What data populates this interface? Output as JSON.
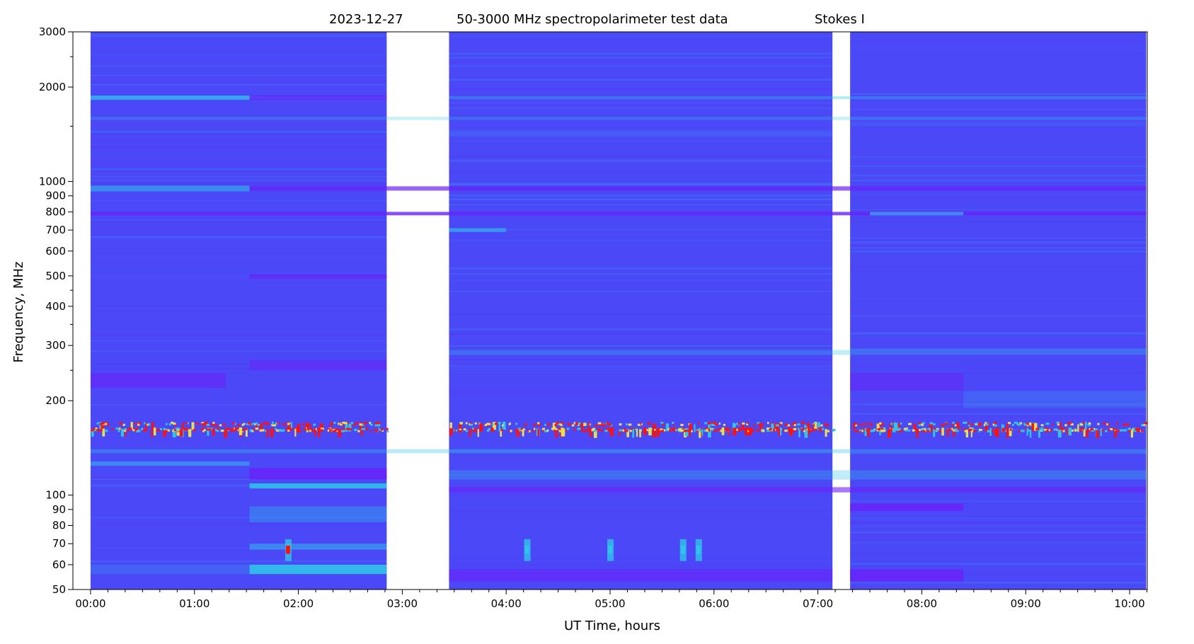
{
  "chart_data": {
    "type": "heatmap",
    "title_parts": [
      "2023-12-27",
      "50-3000 MHz spectropolarimeter test data",
      "Stokes I"
    ],
    "xlabel": "UT Time, hours",
    "ylabel": "Frequency, MHz",
    "xlim_hours": [
      -0.17,
      10.17
    ],
    "ylim_mhz": [
      50,
      3000
    ],
    "yscale": "log",
    "x_ticks": [
      {
        "h": 0,
        "label": "00:00"
      },
      {
        "h": 1,
        "label": "01:00"
      },
      {
        "h": 2,
        "label": "02:00"
      },
      {
        "h": 3,
        "label": "03:00"
      },
      {
        "h": 4,
        "label": "04:00"
      },
      {
        "h": 5,
        "label": "05:00"
      },
      {
        "h": 6,
        "label": "06:00"
      },
      {
        "h": 7,
        "label": "07:00"
      },
      {
        "h": 8,
        "label": "08:00"
      },
      {
        "h": 9,
        "label": "09:00"
      },
      {
        "h": 10,
        "label": "10:00"
      }
    ],
    "x_minor_step_minutes": 10,
    "y_ticks": [
      {
        "f": 50,
        "label": "50"
      },
      {
        "f": 60,
        "label": "60"
      },
      {
        "f": 70,
        "label": "70"
      },
      {
        "f": 80,
        "label": "80"
      },
      {
        "f": 90,
        "label": "90"
      },
      {
        "f": 100,
        "label": "100"
      },
      {
        "f": 200,
        "label": "200"
      },
      {
        "f": 300,
        "label": "300"
      },
      {
        "f": 400,
        "label": "400"
      },
      {
        "f": 500,
        "label": "500"
      },
      {
        "f": 600,
        "label": "600"
      },
      {
        "f": 700,
        "label": "700"
      },
      {
        "f": 800,
        "label": "800"
      },
      {
        "f": 900,
        "label": "900"
      },
      {
        "f": 1000,
        "label": "1000"
      },
      {
        "f": 2000,
        "label": "2000"
      },
      {
        "f": 3000,
        "label": "3000"
      }
    ],
    "y_minor_ticks": [
      250,
      350,
      450,
      1500,
      2500
    ],
    "colormap": {
      "low": "#6a22f8",
      "base": "#4b48f8",
      "mid": "#2ec5e8",
      "high_mid": "#e8e050",
      "high": "#ff1010"
    },
    "data_segments_hours": [
      [
        0.0,
        2.85
      ],
      [
        3.45,
        7.14
      ],
      [
        7.31,
        10.16
      ]
    ],
    "bands": [
      {
        "t": [
          0.0,
          1.53
        ],
        "f": [
          1820,
          1880
        ],
        "color": "#2ec5e8",
        "opacity": 0.7
      },
      {
        "t": [
          1.53,
          2.85
        ],
        "f": [
          1820,
          1880
        ],
        "color": "#6a22f8",
        "opacity": 0.6
      },
      {
        "t": [
          3.45,
          10.16
        ],
        "f": [
          1830,
          1870
        ],
        "color": "#2ec5e8",
        "opacity": 0.35
      },
      {
        "t": [
          0.0,
          10.16
        ],
        "f": [
          1570,
          1610
        ],
        "color": "#2ec5e8",
        "opacity": 0.25
      },
      {
        "t": [
          0.0,
          1.53
        ],
        "f": [
          930,
          970
        ],
        "color": "#2ec5e8",
        "opacity": 0.55
      },
      {
        "t": [
          1.53,
          10.16
        ],
        "f": [
          935,
          965
        ],
        "color": "#6a22f8",
        "opacity": 0.7
      },
      {
        "t": [
          0.0,
          10.16
        ],
        "f": [
          780,
          800
        ],
        "color": "#6a22f8",
        "opacity": 0.8
      },
      {
        "t": [
          7.5,
          8.4
        ],
        "f": [
          780,
          800
        ],
        "color": "#2ec5e8",
        "opacity": 0.6
      },
      {
        "t": [
          3.45,
          4.0
        ],
        "f": [
          690,
          710
        ],
        "color": "#2ec5e8",
        "opacity": 0.6
      },
      {
        "t": [
          1.53,
          2.85
        ],
        "f": [
          490,
          505
        ],
        "color": "#6a22f8",
        "opacity": 0.7
      },
      {
        "t": [
          3.45,
          10.16
        ],
        "f": [
          280,
          290
        ],
        "color": "#2ec5e8",
        "opacity": 0.3
      },
      {
        "t": [
          0.0,
          1.3
        ],
        "f": [
          220,
          245
        ],
        "color": "#6a22f8",
        "opacity": 0.6
      },
      {
        "t": [
          1.53,
          2.85
        ],
        "f": [
          250,
          270
        ],
        "color": "#6a22f8",
        "opacity": 0.5
      },
      {
        "t": [
          7.31,
          8.4
        ],
        "f": [
          215,
          245
        ],
        "color": "#6a22f8",
        "opacity": 0.5
      },
      {
        "t": [
          8.4,
          10.16
        ],
        "f": [
          190,
          215
        ],
        "color": "#2ec5e8",
        "opacity": 0.2
      },
      {
        "t": [
          0.0,
          10.16
        ],
        "f": [
          136,
          140
        ],
        "color": "#2ec5e8",
        "opacity": 0.35
      },
      {
        "t": [
          0.0,
          1.53
        ],
        "f": [
          124,
          128
        ],
        "color": "#2ec5e8",
        "opacity": 0.5
      },
      {
        "t": [
          1.53,
          2.85
        ],
        "f": [
          112,
          122
        ],
        "color": "#6a22f8",
        "opacity": 0.8
      },
      {
        "t": [
          1.53,
          2.85
        ],
        "f": [
          105,
          109
        ],
        "color": "#2ec5e8",
        "opacity": 0.85
      },
      {
        "t": [
          3.45,
          10.16
        ],
        "f": [
          112,
          120
        ],
        "color": "#2ec5e8",
        "opacity": 0.3
      },
      {
        "t": [
          3.45,
          10.16
        ],
        "f": [
          102,
          106
        ],
        "color": "#6a22f8",
        "opacity": 0.6
      },
      {
        "t": [
          7.31,
          8.4
        ],
        "f": [
          89,
          94
        ],
        "color": "#6a22f8",
        "opacity": 0.8
      },
      {
        "t": [
          1.53,
          2.85
        ],
        "f": [
          82,
          92
        ],
        "color": "#2ec5e8",
        "opacity": 0.35
      },
      {
        "t": [
          1.53,
          2.85
        ],
        "f": [
          67,
          70
        ],
        "color": "#2ec5e8",
        "opacity": 0.5
      },
      {
        "t": [
          1.53,
          2.85
        ],
        "f": [
          56,
          60
        ],
        "color": "#2ec5e8",
        "opacity": 0.9
      },
      {
        "t": [
          0.0,
          1.53
        ],
        "f": [
          56,
          60
        ],
        "color": "#2ec5e8",
        "opacity": 0.2
      },
      {
        "t": [
          3.45,
          7.14
        ],
        "f": [
          53,
          58
        ],
        "color": "#6a22f8",
        "opacity": 0.6
      },
      {
        "t": [
          7.31,
          8.4
        ],
        "f": [
          53,
          58
        ],
        "color": "#6a22f8",
        "opacity": 0.8
      }
    ],
    "rfi_rows_mhz": [
      168,
      161
    ],
    "bursts": [
      {
        "t": 1.9,
        "f": 67,
        "color": "#ff1010"
      },
      {
        "t": 4.2,
        "f": 67,
        "color": "#2ec5e8"
      },
      {
        "t": 5.0,
        "f": 67,
        "color": "#2ec5e8"
      },
      {
        "t": 5.7,
        "f": 67,
        "color": "#2ec5e8"
      },
      {
        "t": 5.85,
        "f": 67,
        "color": "#2ec5e8"
      }
    ]
  }
}
